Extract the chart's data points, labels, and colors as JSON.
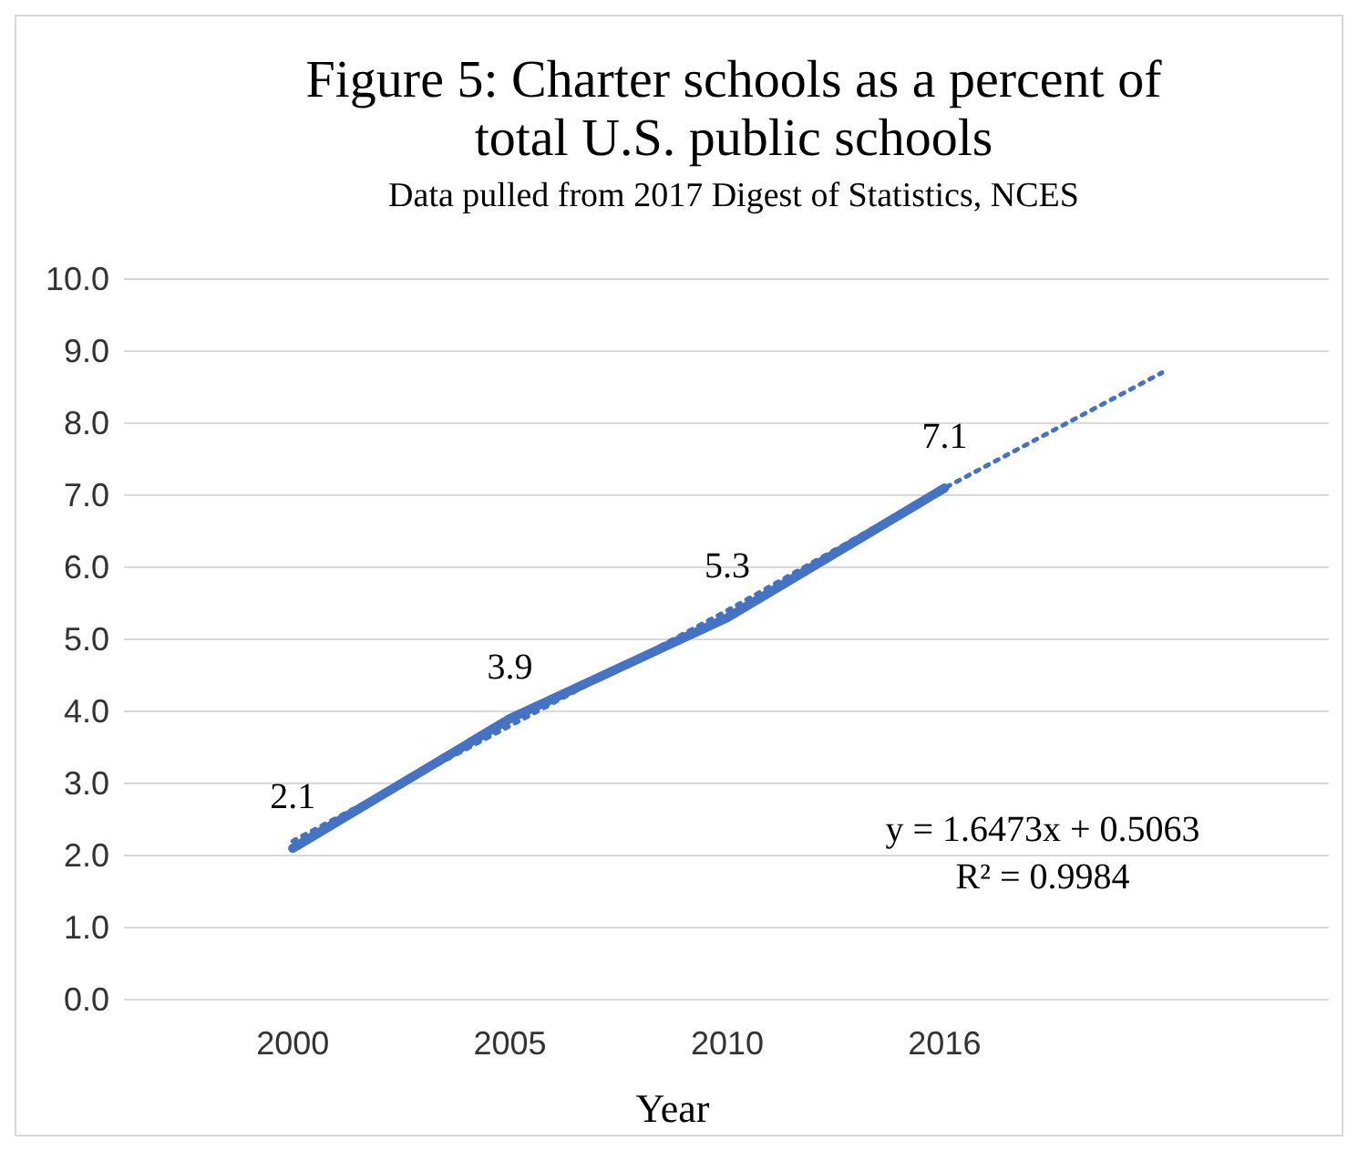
{
  "chart_data": {
    "type": "line",
    "title": "Figure 5: Charter schools as a percent of total U.S. public schools",
    "subtitle": "Data pulled from 2017 Digest of Statistics, NCES",
    "xlabel": "Year",
    "categories": [
      "2000",
      "2005",
      "2010",
      "2016",
      null
    ],
    "series": [
      {
        "color": "#4472c4",
        "values": [
          2.1,
          3.9,
          5.3,
          7.1,
          null
        ],
        "value_labels": [
          "2.1",
          "3.9",
          "5.3",
          "7.1",
          null
        ],
        "line_style": "solid"
      },
      {
        "type": "line",
        "color": "#4472c4",
        "values": [
          2.2,
          3.8,
          5.4,
          7.1,
          8.7
        ],
        "line_style": "dotted"
      }
    ],
    "ylim": [
      0,
      10
    ],
    "yticks": [
      {
        "value": 0,
        "label": "0.0"
      },
      {
        "value": 1,
        "label": "1.0"
      },
      {
        "value": 2,
        "label": "2.0"
      },
      {
        "value": 3,
        "label": "3.0"
      },
      {
        "value": 4,
        "label": "4.0"
      },
      {
        "value": 5,
        "label": "5.0"
      },
      {
        "value": 6,
        "label": "6.0"
      },
      {
        "value": 7,
        "label": "7.0"
      },
      {
        "value": 8,
        "label": "8.0"
      },
      {
        "value": 9,
        "label": "9.0"
      },
      {
        "value": 10,
        "label": "10.0"
      }
    ],
    "grid": "y",
    "marker": "none",
    "annotations": [
      "y = 1.6473x + 0.5063",
      "R² = 0.9984"
    ]
  }
}
